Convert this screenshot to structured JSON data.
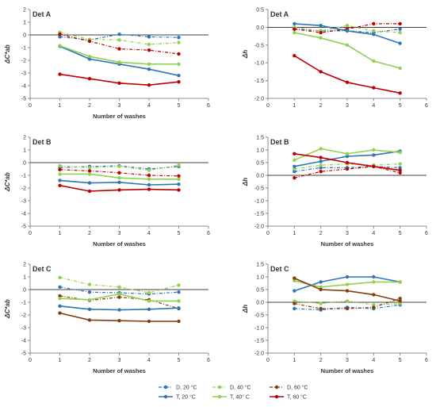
{
  "x_ticks": [
    "0",
    "1",
    "2",
    "3",
    "4",
    "5",
    "6"
  ],
  "legend": [
    {
      "label": "D, 20 °C",
      "color": "#2e75b6",
      "dash": true
    },
    {
      "label": "D, 40 °C",
      "color": "#92d050",
      "dash": true
    },
    {
      "label": "D, 60 °C",
      "color": "#843c0c",
      "dash": true
    },
    {
      "label": "T, 20 °C",
      "color": "#2e75b6",
      "dash": false
    },
    {
      "label": "T, 40° C",
      "color": "#92d050",
      "dash": false
    },
    {
      "label": "T, 60 °C",
      "color": "#c00000",
      "dash": false
    }
  ],
  "chart_data": [
    {
      "type": "line",
      "panel": "Det A",
      "xlabel": "Number of washes",
      "ylabel": "ΔC*ab",
      "xlim": [
        0,
        6
      ],
      "ylim": [
        -5,
        2
      ],
      "y_ticks": [
        "2",
        "1",
        "0",
        "-1",
        "-2",
        "-3",
        "-4",
        "-5"
      ],
      "x": [
        1,
        2,
        3,
        4,
        5
      ],
      "series": [
        {
          "name": "D, 20 °C",
          "color": "#2e75b6",
          "dash": true,
          "values": [
            -0.15,
            -0.4,
            0.05,
            -0.15,
            -0.2
          ]
        },
        {
          "name": "D, 40 °C",
          "color": "#92d050",
          "dash": true,
          "values": [
            0.2,
            -0.35,
            -0.4,
            -0.75,
            -0.6
          ]
        },
        {
          "name": "D, 60 °C",
          "color": "#c00000",
          "dash": true,
          "values": [
            0.05,
            -0.5,
            -1.1,
            -1.2,
            -1.5
          ]
        },
        {
          "name": "T, 20 °C",
          "color": "#2e75b6",
          "dash": false,
          "values": [
            -0.9,
            -1.9,
            -2.3,
            -2.7,
            -3.2
          ]
        },
        {
          "name": "T, 40° C",
          "color": "#92d050",
          "dash": false,
          "values": [
            -0.85,
            -1.7,
            -2.15,
            -2.3,
            -2.3
          ]
        },
        {
          "name": "T, 60 °C",
          "color": "#c00000",
          "dash": false,
          "values": [
            -3.1,
            -3.45,
            -3.8,
            -3.95,
            -3.7
          ]
        }
      ]
    },
    {
      "type": "line",
      "panel": "Det A",
      "xlabel": "",
      "ylabel": "Δh",
      "xlim": [
        0,
        6
      ],
      "ylim": [
        -2,
        0.5
      ],
      "y_ticks": [
        "0.5",
        "0.0",
        "-0.5",
        "-1.0",
        "-1.5",
        "-2.0"
      ],
      "x": [
        1,
        2,
        3,
        4,
        5
      ],
      "series": [
        {
          "name": "D, 20 °C",
          "color": "#2e75b6",
          "dash": true,
          "values": [
            -0.05,
            -0.1,
            -0.1,
            -0.15,
            -0.05
          ]
        },
        {
          "name": "D, 40 °C",
          "color": "#92d050",
          "dash": true,
          "values": [
            0.0,
            -0.1,
            0.05,
            -0.1,
            -0.15
          ]
        },
        {
          "name": "D, 60 °C",
          "color": "#c00000",
          "dash": true,
          "values": [
            -0.05,
            -0.15,
            -0.05,
            0.1,
            0.1
          ]
        },
        {
          "name": "T, 20 °C",
          "color": "#2e75b6",
          "dash": false,
          "values": [
            0.1,
            0.05,
            -0.1,
            -0.2,
            -0.45
          ]
        },
        {
          "name": "T, 40° C",
          "color": "#92d050",
          "dash": false,
          "values": [
            -0.15,
            -0.3,
            -0.5,
            -0.95,
            -1.15
          ]
        },
        {
          "name": "T, 60 °C",
          "color": "#c00000",
          "dash": false,
          "values": [
            -0.8,
            -1.25,
            -1.55,
            -1.7,
            -1.85
          ]
        }
      ]
    },
    {
      "type": "line",
      "panel": "Det B",
      "xlabel": "Number of washes",
      "ylabel": "ΔC*ab",
      "xlim": [
        0,
        6
      ],
      "ylim": [
        -5,
        2
      ],
      "y_ticks": [
        "2",
        "1",
        "0",
        "-1",
        "-2",
        "-3",
        "-4",
        "-5"
      ],
      "x": [
        1,
        2,
        3,
        4,
        5
      ],
      "series": [
        {
          "name": "D, 20 °C",
          "color": "#2e75b6",
          "dash": true,
          "values": [
            -0.4,
            -0.3,
            -0.25,
            -0.5,
            -0.3
          ]
        },
        {
          "name": "D, 40 °C",
          "color": "#92d050",
          "dash": true,
          "values": [
            -0.25,
            -0.4,
            -0.3,
            -0.6,
            -0.2
          ]
        },
        {
          "name": "D, 60 °C",
          "color": "#c00000",
          "dash": true,
          "values": [
            -0.55,
            -0.65,
            -0.8,
            -1.0,
            -1.05
          ]
        },
        {
          "name": "T, 20 °C",
          "color": "#2e75b6",
          "dash": false,
          "values": [
            -1.4,
            -1.6,
            -1.55,
            -1.75,
            -1.7
          ]
        },
        {
          "name": "T, 40° C",
          "color": "#92d050",
          "dash": false,
          "values": [
            -0.9,
            -0.9,
            -1.2,
            -1.3,
            -1.3
          ]
        },
        {
          "name": "T, 60 °C",
          "color": "#c00000",
          "dash": false,
          "values": [
            -1.8,
            -2.25,
            -2.15,
            -2.1,
            -2.15
          ]
        }
      ]
    },
    {
      "type": "line",
      "panel": "Det B",
      "xlabel": "Number of washes",
      "ylabel": "Δh",
      "xlim": [
        0,
        6
      ],
      "ylim": [
        -2,
        1.5
      ],
      "y_ticks": [
        "1.5",
        "1.0",
        "0.5",
        "0.0",
        "-0.5",
        "-1.0",
        "-1.5",
        "-2.0"
      ],
      "x": [
        1,
        2,
        3,
        4,
        5
      ],
      "series": [
        {
          "name": "D, 20 °C",
          "color": "#2e75b6",
          "dash": true,
          "values": [
            0.15,
            0.3,
            0.3,
            0.35,
            0.3
          ]
        },
        {
          "name": "D, 40 °C",
          "color": "#92d050",
          "dash": true,
          "values": [
            0.25,
            0.4,
            0.45,
            0.4,
            0.45
          ]
        },
        {
          "name": "D, 60 °C",
          "color": "#c00000",
          "dash": true,
          "values": [
            -0.1,
            0.15,
            0.25,
            0.35,
            0.1
          ]
        },
        {
          "name": "T, 20 °C",
          "color": "#2e75b6",
          "dash": false,
          "values": [
            0.35,
            0.55,
            0.75,
            0.8,
            0.95
          ]
        },
        {
          "name": "T, 40° C",
          "color": "#92d050",
          "dash": false,
          "values": [
            0.6,
            1.05,
            0.85,
            1.0,
            0.9
          ]
        },
        {
          "name": "T, 60 °C",
          "color": "#c00000",
          "dash": false,
          "values": [
            0.85,
            0.7,
            0.5,
            0.35,
            0.2
          ]
        }
      ]
    },
    {
      "type": "line",
      "panel": "Det C",
      "xlabel": "Number of washes",
      "ylabel": "ΔC*ab",
      "xlim": [
        0,
        6
      ],
      "ylim": [
        -5,
        2
      ],
      "y_ticks": [
        "2",
        "1",
        "0",
        "-1",
        "-2",
        "-3",
        "-4",
        "-5"
      ],
      "x": [
        1,
        2,
        3,
        4,
        5
      ],
      "series": [
        {
          "name": "D, 20 °C",
          "color": "#2e75b6",
          "dash": true,
          "values": [
            0.2,
            -0.2,
            -0.25,
            -0.35,
            -0.2
          ]
        },
        {
          "name": "D, 40 °C",
          "color": "#92d050",
          "dash": true,
          "values": [
            0.95,
            0.4,
            0.2,
            -0.25,
            0.35
          ]
        },
        {
          "name": "D, 60 °C",
          "color": "#843c0c",
          "dash": true,
          "values": [
            -0.5,
            -0.85,
            -0.6,
            -0.8,
            -1.5
          ]
        },
        {
          "name": "T, 20 °C",
          "color": "#2e75b6",
          "dash": false,
          "values": [
            -1.3,
            -1.55,
            -1.6,
            -1.55,
            -1.45
          ]
        },
        {
          "name": "T, 40° C",
          "color": "#92d050",
          "dash": false,
          "values": [
            -0.7,
            -0.8,
            -0.35,
            -0.9,
            -0.9
          ]
        },
        {
          "name": "T, 60 °C",
          "color": "#843c0c",
          "dash": false,
          "values": [
            -1.85,
            -2.4,
            -2.45,
            -2.5,
            -2.5
          ]
        }
      ]
    },
    {
      "type": "line",
      "panel": "Det C",
      "xlabel": "Number of washes",
      "ylabel": "Δh",
      "xlim": [
        0,
        6
      ],
      "ylim": [
        -2,
        1.5
      ],
      "y_ticks": [
        "1.5",
        "1.0",
        "0.5",
        "0.0",
        "-0.5",
        "-1.0",
        "-1.5",
        "-2.0"
      ],
      "x": [
        1,
        2,
        3,
        4,
        5
      ],
      "series": [
        {
          "name": "D, 20 °C",
          "color": "#2e75b6",
          "dash": true,
          "values": [
            -0.25,
            -0.3,
            -0.2,
            -0.25,
            -0.1
          ]
        },
        {
          "name": "D, 40 °C",
          "color": "#92d050",
          "dash": true,
          "values": [
            0.05,
            -0.05,
            0.05,
            -0.1,
            -0.05
          ]
        },
        {
          "name": "D, 60 °C",
          "color": "#843c0c",
          "dash": true,
          "values": [
            -0.05,
            -0.25,
            -0.25,
            -0.2,
            0.15
          ]
        },
        {
          "name": "T, 20 °C",
          "color": "#2e75b6",
          "dash": false,
          "values": [
            0.45,
            0.8,
            1.0,
            1.0,
            0.8
          ]
        },
        {
          "name": "T, 40° C",
          "color": "#92d050",
          "dash": false,
          "values": [
            0.85,
            0.6,
            0.7,
            0.8,
            0.8
          ]
        },
        {
          "name": "T, 60 °C",
          "color": "#843c0c",
          "dash": false,
          "values": [
            0.95,
            0.5,
            0.45,
            0.3,
            0.05
          ]
        }
      ]
    }
  ]
}
